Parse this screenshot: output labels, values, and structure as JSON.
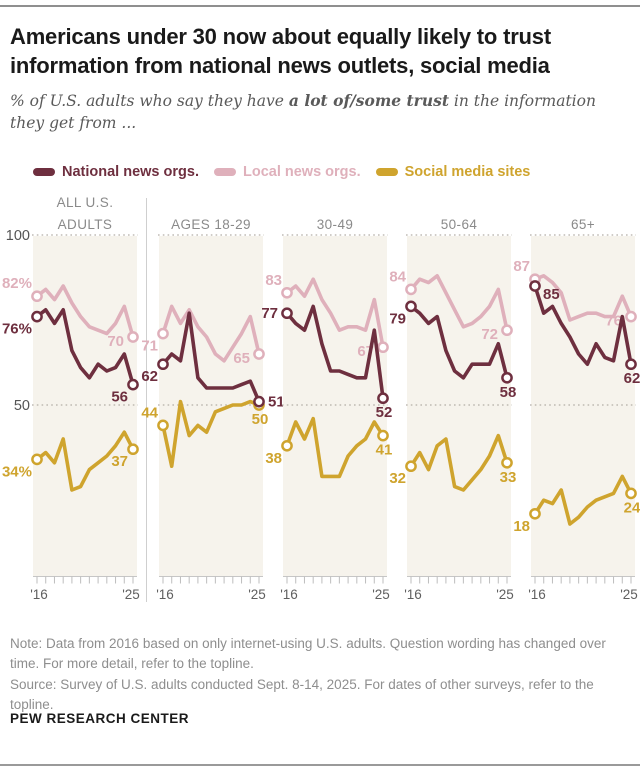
{
  "header": {
    "title": "Americans under 30 now about equally likely to trust information from national news outlets, social media",
    "subtitle_prefix": "% of U.S. adults who say they have ",
    "subtitle_bold": "a lot of/some trust",
    "subtitle_suffix": " in the information they get from ..."
  },
  "legend": [
    {
      "label": "National news orgs.",
      "color": "#6e2f3f"
    },
    {
      "label": "Local news orgs.",
      "color": "#dfb0bb"
    },
    {
      "label": "Social media sites",
      "color": "#cfa42e"
    }
  ],
  "notes": {
    "note": "Note: Data from 2016 based on only internet-using U.S. adults. Question wording has changed over time. For more detail, refer to the topline.",
    "source": "Source: Survey of U.S. adults conducted Sept. 8-14, 2025. For dates of other surveys, refer to the topline."
  },
  "brand": "PEW RESEARCH CENTER",
  "chart_data": {
    "type": "line",
    "x_axis": {
      "start_label": "'16",
      "end_label": "'25",
      "ticks": 12
    },
    "y_axis": {
      "range": [
        0,
        100
      ],
      "gridlines": [
        100,
        50
      ],
      "gridline_labels": [
        "100",
        "50"
      ]
    },
    "colors": {
      "national": "#6e2f3f",
      "local": "#dfb0bb",
      "social": "#cfa42e",
      "plot_bg": "#f6f3ec"
    },
    "panels": [
      {
        "title_lines": [
          "ALL U.S.",
          "ADULTS"
        ],
        "series": [
          {
            "name": "national",
            "values": [
              76,
              78,
              74,
              78,
              66,
              61,
              58,
              62,
              60,
              61,
              65,
              56
            ],
            "start_label": {
              "text": "76%",
              "pos": "below-left"
            },
            "end_label": {
              "text": "56",
              "pos": "below-left"
            }
          },
          {
            "name": "local",
            "values": [
              82,
              84,
              81,
              85,
              80,
              76,
              73,
              72,
              71,
              74,
              79,
              70
            ],
            "start_label": {
              "text": "82%",
              "pos": "above-left"
            },
            "end_label": {
              "text": "70",
              "pos": "left-low"
            }
          },
          {
            "name": "social",
            "values": [
              34,
              36,
              33,
              40,
              25,
              26,
              31,
              33,
              35,
              38,
              42,
              37
            ],
            "start_label": {
              "text": "34%",
              "pos": "below-left"
            },
            "end_label": {
              "text": "37",
              "pos": "below-left"
            }
          }
        ]
      },
      {
        "title_lines": [
          "AGES 18-29"
        ],
        "series": [
          {
            "name": "national",
            "values": [
              62,
              65,
              63,
              77,
              58,
              55,
              55,
              55,
              55,
              56,
              57,
              51
            ],
            "start_label": {
              "text": "62",
              "pos": "below-left"
            },
            "end_label": {
              "text": "51",
              "pos": "right"
            }
          },
          {
            "name": "local",
            "values": [
              71,
              79,
              74,
              78,
              73,
              70,
              65,
              63,
              67,
              71,
              76,
              65
            ],
            "start_label": {
              "text": "71",
              "pos": "below-left"
            },
            "end_label": {
              "text": "65",
              "pos": "left-low"
            }
          },
          {
            "name": "social",
            "values": [
              44,
              32,
              51,
              41,
              44,
              42,
              48,
              49,
              50,
              50,
              51,
              50
            ],
            "start_label": {
              "text": "44",
              "pos": "above-left"
            },
            "end_label": {
              "text": "50",
              "pos": "below"
            }
          }
        ]
      },
      {
        "title_lines": [
          "30-49"
        ],
        "series": [
          {
            "name": "national",
            "values": [
              77,
              74,
              72,
              79,
              68,
              60,
              60,
              59,
              58,
              58,
              72,
              52
            ],
            "start_label": {
              "text": "77",
              "pos": "left"
            },
            "end_label": {
              "text": "52",
              "pos": "below"
            }
          },
          {
            "name": "local",
            "values": [
              83,
              85,
              82,
              87,
              81,
              77,
              72,
              73,
              73,
              72,
              81,
              67
            ],
            "start_label": {
              "text": "83",
              "pos": "above-left"
            },
            "end_label": {
              "text": "67",
              "pos": "left-low"
            }
          },
          {
            "name": "social",
            "values": [
              38,
              45,
              40,
              46,
              29,
              29,
              29,
              35,
              38,
              40,
              45,
              41
            ],
            "start_label": {
              "text": "38",
              "pos": "below-left"
            },
            "end_label": {
              "text": "41",
              "pos": "below"
            }
          }
        ]
      },
      {
        "title_lines": [
          "50-64"
        ],
        "series": [
          {
            "name": "national",
            "values": [
              79,
              77,
              74,
              76,
              66,
              60,
              58,
              62,
              62,
              62,
              68,
              58
            ],
            "start_label": {
              "text": "79",
              "pos": "below-left"
            },
            "end_label": {
              "text": "58",
              "pos": "below"
            }
          },
          {
            "name": "local",
            "values": [
              84,
              87,
              86,
              88,
              83,
              78,
              73,
              74,
              76,
              79,
              84,
              72
            ],
            "start_label": {
              "text": "84",
              "pos": "above-left"
            },
            "end_label": {
              "text": "72",
              "pos": "left-low"
            }
          },
          {
            "name": "social",
            "values": [
              32,
              36,
              31,
              38,
              40,
              26,
              25,
              28,
              31,
              35,
              41,
              33
            ],
            "start_label": {
              "text": "32",
              "pos": "below-left"
            },
            "end_label": {
              "text": "33",
              "pos": "below"
            }
          }
        ]
      },
      {
        "title_lines": [
          "65+"
        ],
        "series": [
          {
            "name": "national",
            "values": [
              85,
              77,
              79,
              74,
              70,
              65,
              62,
              68,
              64,
              63,
              76,
              62
            ],
            "start_label": {
              "text": "85",
              "pos": "right-low"
            },
            "end_label": {
              "text": "62",
              "pos": "below"
            }
          },
          {
            "name": "local",
            "values": [
              87,
              88,
              86,
              83,
              75,
              76,
              77,
              77,
              76,
              76,
              82,
              76
            ],
            "start_label": {
              "text": "87",
              "pos": "above-left"
            },
            "end_label": {
              "text": "76",
              "pos": "left-low"
            }
          },
          {
            "name": "social",
            "values": [
              18,
              22,
              21,
              25,
              15,
              17,
              20,
              22,
              23,
              24,
              29,
              24
            ],
            "start_label": {
              "text": "18",
              "pos": "below-left"
            },
            "end_label": {
              "text": "24",
              "pos": "below"
            }
          }
        ]
      }
    ]
  }
}
